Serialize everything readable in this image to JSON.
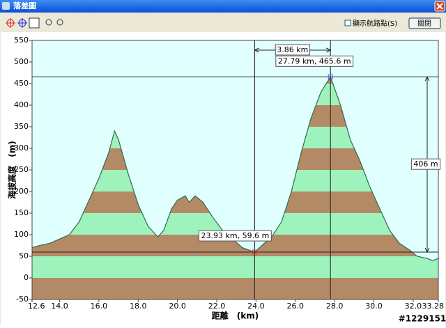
{
  "window": {
    "title": "落差圖",
    "show_waypoints": "顯示航路點(S)",
    "close_button": "關閉"
  },
  "watermark": "#1229151",
  "chart_data": {
    "type": "area",
    "xlabel": "距離　(km)",
    "ylabel": "海拔高度　(m)",
    "x": [
      12.6,
      13.0,
      13.5,
      14.0,
      14.5,
      15.0,
      15.5,
      16.0,
      16.5,
      16.8,
      17.0,
      17.5,
      18.0,
      18.5,
      19.0,
      19.3,
      19.7,
      20.0,
      20.4,
      20.6,
      20.9,
      21.3,
      21.8,
      22.3,
      22.8,
      23.3,
      23.6,
      23.93,
      24.3,
      24.8,
      25.3,
      25.8,
      26.3,
      26.8,
      27.3,
      27.79,
      28.3,
      28.8,
      29.3,
      29.8,
      30.3,
      30.8,
      31.3,
      31.8,
      32.2,
      32.7,
      33.0,
      33.28
    ],
    "values": [
      70,
      75,
      80,
      90,
      100,
      130,
      180,
      230,
      290,
      340,
      320,
      240,
      170,
      120,
      95,
      110,
      160,
      180,
      190,
      175,
      190,
      175,
      140,
      110,
      90,
      70,
      65,
      59.6,
      75,
      95,
      130,
      200,
      290,
      370,
      430,
      465.6,
      400,
      320,
      270,
      210,
      160,
      110,
      80,
      65,
      50,
      45,
      40,
      45
    ],
    "line_color": "#2f6b4a",
    "band_colors": [
      "#b48a66",
      "#9ef3bd"
    ],
    "background": "#e0ffff",
    "xlim": [
      12.6,
      33.28
    ],
    "ylim": [
      -50,
      550
    ],
    "xticks": [
      12.6,
      {
        "value": 14,
        "label": "14.0"
      },
      {
        "value": 16,
        "label": "16.0"
      },
      {
        "value": 18,
        "label": "18.0"
      },
      {
        "value": 20,
        "label": "20.0"
      },
      {
        "value": 22,
        "label": "22.0"
      },
      {
        "value": 24,
        "label": "24.0"
      },
      {
        "value": 26,
        "label": "26.0"
      },
      {
        "value": 28,
        "label": "28.0"
      },
      {
        "value": 30,
        "label": "30.0"
      },
      {
        "value": 32,
        "label": "32.0"
      },
      33.28
    ],
    "yticks": [
      -50,
      0,
      50,
      100,
      150,
      200,
      250,
      300,
      350,
      400,
      450,
      500,
      550
    ],
    "markers": [
      {
        "x": 23.93,
        "y": 59.6,
        "label": "23.93 km, 59.6 m"
      },
      {
        "x": 27.79,
        "y": 465.6,
        "label": "27.79 km, 465.6 m"
      }
    ],
    "dx": {
      "value": 3.86,
      "label": "3.86 km"
    },
    "dy": {
      "value": 406,
      "label": "406 m"
    }
  }
}
